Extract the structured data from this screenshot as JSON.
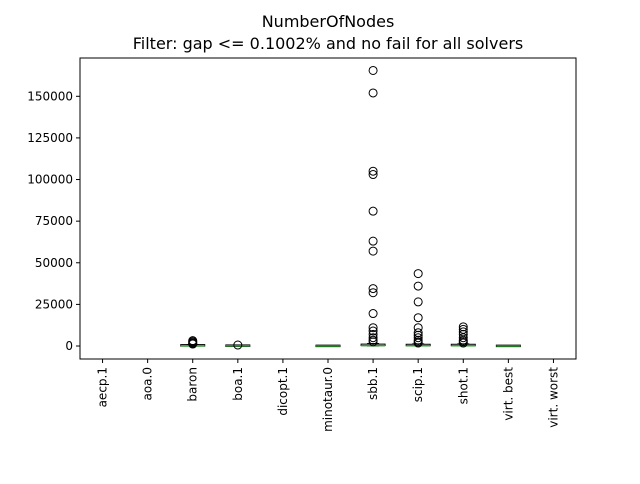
{
  "chart_data": {
    "type": "box",
    "title": "NumberOfNodes",
    "subtitle": "Filter: gap <= 0.1002% and no fail for all solvers",
    "xlabel": "",
    "ylabel": "",
    "ylim": [
      -7800,
      173000
    ],
    "yticks": [
      0,
      25000,
      50000,
      75000,
      100000,
      125000,
      150000
    ],
    "ytick_labels": [
      "0",
      "25000",
      "50000",
      "75000",
      "100000",
      "125000",
      "150000"
    ],
    "grid": false,
    "legend": "none",
    "colors": {
      "median": "#2ca02c",
      "box": "#000000",
      "flier": "#000000"
    },
    "categories": [
      "aecp.1",
      "aoa.0",
      "baron",
      "boa.1",
      "dicopt.1",
      "minotaur.0",
      "sbb.1",
      "scip.1",
      "shot.1",
      "virt. best",
      "virt. worst"
    ],
    "boxes": [
      {
        "name": "aecp.1",
        "has_data": false
      },
      {
        "name": "aoa.0",
        "has_data": false
      },
      {
        "name": "baron",
        "has_data": true,
        "q1": 0,
        "median": 100,
        "q3": 400,
        "whisker_low": 0,
        "whisker_high": 900,
        "fliers": [
          1200,
          1600,
          2000,
          2600,
          3200
        ]
      },
      {
        "name": "boa.1",
        "has_data": true,
        "q1": 0,
        "median": 50,
        "q3": 200,
        "whisker_low": 0,
        "whisker_high": 400,
        "fliers": [
          600
        ]
      },
      {
        "name": "dicopt.1",
        "has_data": false
      },
      {
        "name": "minotaur.0",
        "has_data": true,
        "q1": 0,
        "median": 20,
        "q3": 80,
        "whisker_low": 0,
        "whisker_high": 150,
        "fliers": []
      },
      {
        "name": "sbb.1",
        "has_data": true,
        "q1": 0,
        "median": 200,
        "q3": 700,
        "whisker_low": 0,
        "whisker_high": 1500,
        "fliers": [
          2500,
          3500,
          5000,
          7000,
          9000,
          11000,
          19500,
          32000,
          34500,
          57000,
          63000,
          81000,
          103000,
          105000,
          152000,
          165500
        ]
      },
      {
        "name": "scip.1",
        "has_data": true,
        "q1": 0,
        "median": 150,
        "q3": 600,
        "whisker_low": 0,
        "whisker_high": 1300,
        "fliers": [
          1800,
          2500,
          3500,
          5000,
          6500,
          8000,
          11000,
          17000,
          26500,
          36000,
          43500
        ]
      },
      {
        "name": "shot.1",
        "has_data": true,
        "q1": 0,
        "median": 150,
        "q3": 600,
        "whisker_low": 0,
        "whisker_high": 1300,
        "fliers": [
          1800,
          2600,
          3500,
          5000,
          7000,
          8500,
          10000,
          11500
        ]
      },
      {
        "name": "virt. best",
        "has_data": true,
        "q1": 0,
        "median": 20,
        "q3": 80,
        "whisker_low": 0,
        "whisker_high": 150,
        "fliers": []
      },
      {
        "name": "virt. worst",
        "has_data": false
      }
    ]
  }
}
